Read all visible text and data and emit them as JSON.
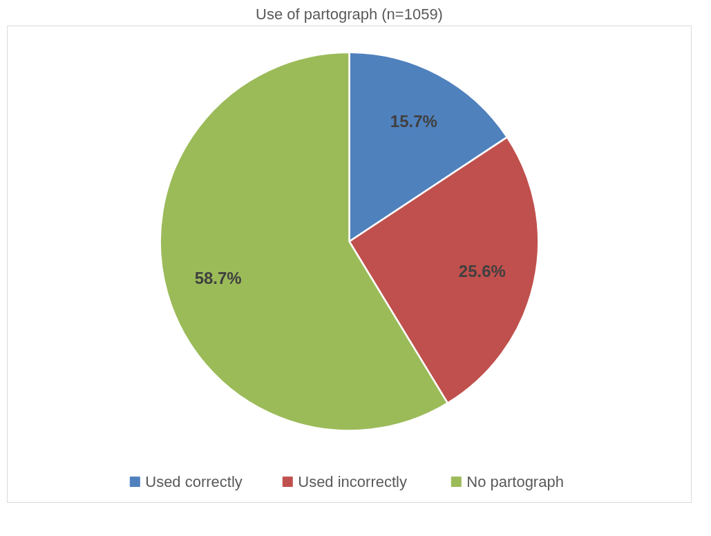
{
  "chart_data": {
    "type": "pie",
    "title": "Use of partograph (n=1059)",
    "categories": [
      "Used correctly",
      "Used incorrectly",
      "No partograph"
    ],
    "values": [
      15.7,
      25.6,
      58.7
    ],
    "colors": [
      "#4f81bd",
      "#c0504d",
      "#9bbb59"
    ],
    "value_labels": [
      "15.7%",
      "25.6%",
      "58.7%"
    ],
    "legend": "bottom"
  }
}
